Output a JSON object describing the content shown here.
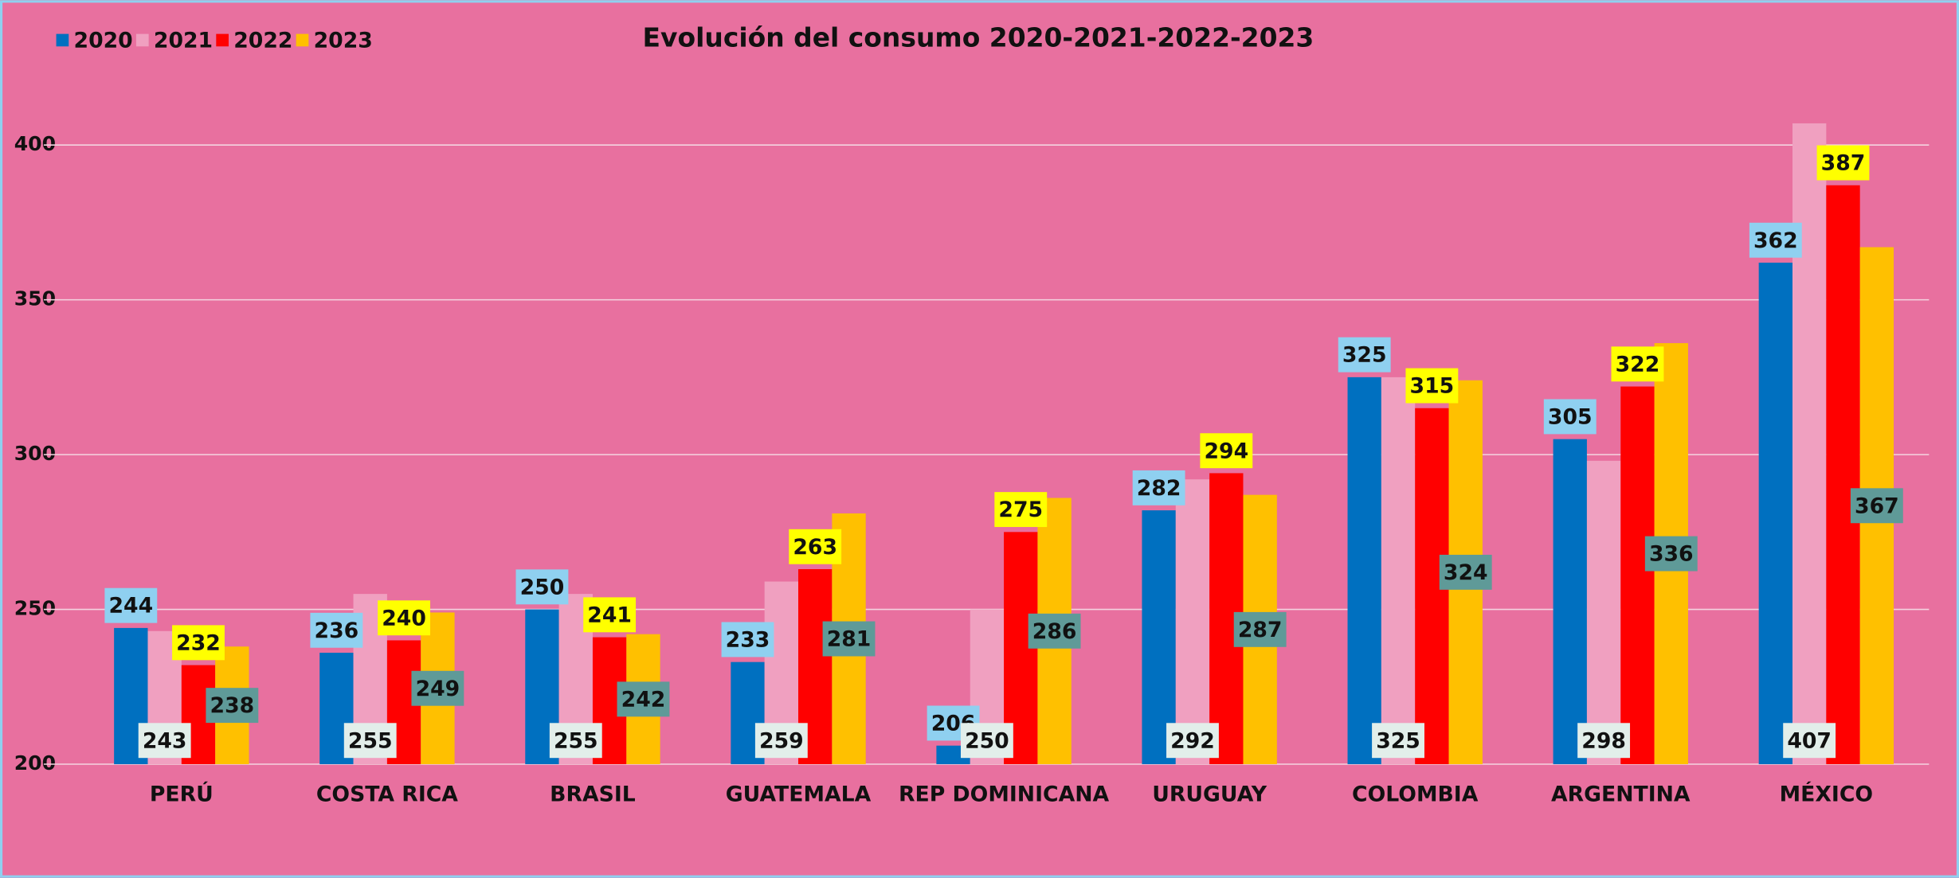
{
  "chart_data": {
    "type": "bar",
    "title": "Evolución del consumo 2020-2021-2022-2023",
    "categories": [
      "PERÚ",
      "COSTA RICA",
      "BRASIL",
      "GUATEMALA",
      "REP DOMINICANA",
      "URUGUAY",
      "COLOMBIA",
      "ARGENTINA",
      "MÉXICO"
    ],
    "series": [
      {
        "name": "2020",
        "color": "#0070c0",
        "values": [
          244,
          236,
          250,
          233,
          206,
          282,
          325,
          305,
          362
        ]
      },
      {
        "name": "2021",
        "color": "#f0a0c0",
        "values": [
          243,
          255,
          255,
          259,
          250,
          292,
          325,
          298,
          407
        ]
      },
      {
        "name": "2022",
        "color": "#ff0000",
        "values": [
          232,
          240,
          241,
          263,
          275,
          294,
          315,
          322,
          387
        ]
      },
      {
        "name": "2023",
        "color": "#ffc000",
        "values": [
          238,
          249,
          242,
          281,
          286,
          287,
          324,
          336,
          367
        ]
      }
    ],
    "ylim": [
      200,
      420
    ],
    "yticks": [
      200,
      250,
      300,
      350,
      400
    ],
    "grid": true,
    "legend": "top-left"
  }
}
